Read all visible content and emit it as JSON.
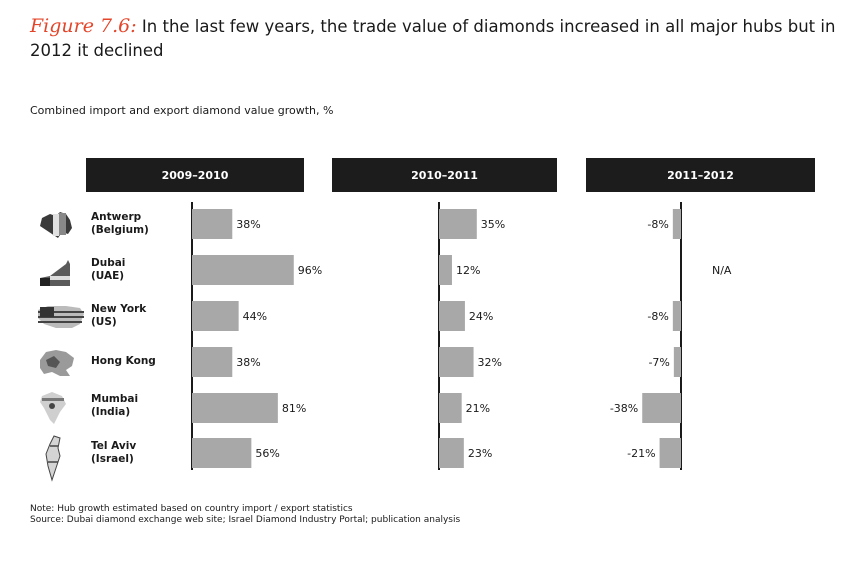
{
  "figure": {
    "label": "Figure 7.6:",
    "title": "In the last few years, the trade value of diamonds increased in all major hubs but in 2012 it declined"
  },
  "subtitle": "Combined import and export diamond value growth, %",
  "note": "Note:  Hub growth estimated based on country import / export statistics",
  "source": "Source:  Dubai diamond exchange web site; Israel Diamond Industry Portal; publication analysis",
  "hubs": [
    {
      "line1": "Antwerp",
      "line2": "(Belgium)",
      "icon": "belgium-map-icon"
    },
    {
      "line1": "Dubai",
      "line2": "(UAE)",
      "icon": "uae-map-icon"
    },
    {
      "line1": "New York",
      "line2": "(US)",
      "icon": "us-flag-map-icon"
    },
    {
      "line1": "Hong Kong",
      "line2": "",
      "icon": "hong-kong-map-icon"
    },
    {
      "line1": "Mumbai",
      "line2": "(India)",
      "icon": "india-map-icon"
    },
    {
      "line1": "Tel Aviv",
      "line2": "(Israel)",
      "icon": "israel-map-icon"
    }
  ],
  "colors": {
    "bar": "#a8a8a8",
    "header": "#1c1c1c",
    "axis": "#1a1a1a",
    "accent": "#e3462a"
  },
  "chart_data": {
    "type": "bar",
    "orientation": "horizontal",
    "categories": [
      "Antwerp (Belgium)",
      "Dubai (UAE)",
      "New York (US)",
      "Hong Kong",
      "Mumbai (India)",
      "Tel Aviv (Israel)"
    ],
    "series": [
      {
        "name": "2009–2010",
        "values": [
          38,
          96,
          44,
          38,
          81,
          56
        ],
        "labels": [
          "38%",
          "96%",
          "44%",
          "38%",
          "81%",
          "56%"
        ]
      },
      {
        "name": "2010–2011",
        "values": [
          35,
          12,
          24,
          32,
          21,
          23
        ],
        "labels": [
          "35%",
          "12%",
          "24%",
          "32%",
          "21%",
          "23%"
        ]
      },
      {
        "name": "2011–2012",
        "values": [
          -8,
          null,
          -8,
          -7,
          -38,
          -21
        ],
        "labels": [
          "-8%",
          "N/A",
          "-8%",
          "-7%",
          "-38%",
          "-21%"
        ]
      }
    ],
    "unit": "%",
    "xlim": [
      -40,
      100
    ],
    "grid": false,
    "legend": "none"
  }
}
